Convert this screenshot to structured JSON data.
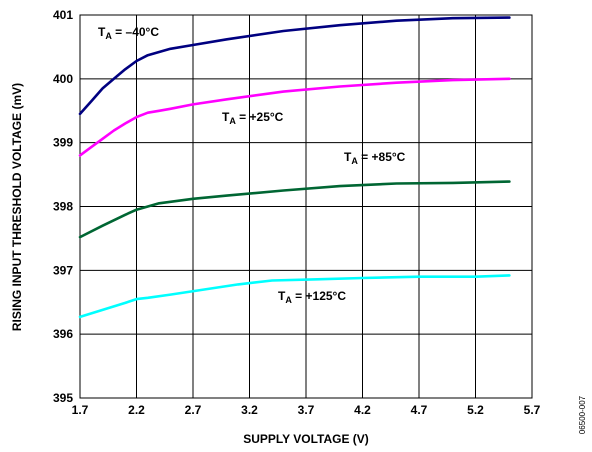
{
  "chart_data": {
    "type": "line",
    "xlabel": "SUPPLY VOLTAGE (V)",
    "ylabel": "RISING INPUT THRESHOLD VOLTAGE (mV)",
    "xlim": [
      1.7,
      5.7
    ],
    "ylim": [
      395,
      401
    ],
    "x_ticks": [
      "1.7",
      "2.2",
      "2.7",
      "3.2",
      "3.7",
      "4.2",
      "4.7",
      "5.2",
      "5.7"
    ],
    "y_ticks": [
      "395",
      "396",
      "397",
      "398",
      "399",
      "400",
      "401"
    ],
    "grid": true,
    "figure_id": "06500-007",
    "series": [
      {
        "name": "TA = –40°C",
        "label_main": "T",
        "label_sub": "A",
        "label_rest": " = –40°C",
        "color": "#000080",
        "x": [
          1.7,
          1.8,
          1.9,
          2.0,
          2.1,
          2.2,
          2.3,
          2.4,
          2.5,
          2.7,
          3.0,
          3.5,
          4.0,
          4.5,
          5.0,
          5.5
        ],
        "y": [
          399.45,
          399.65,
          399.85,
          400.0,
          400.15,
          400.28,
          400.37,
          400.42,
          400.47,
          400.53,
          400.62,
          400.75,
          400.84,
          400.91,
          400.95,
          400.96
        ]
      },
      {
        "name": "TA = +25°C",
        "label_main": "T",
        "label_sub": "A",
        "label_rest": " = +25°C",
        "color": "#ff00ff",
        "x": [
          1.7,
          1.8,
          1.9,
          2.0,
          2.1,
          2.2,
          2.3,
          2.4,
          2.5,
          2.7,
          3.0,
          3.5,
          4.0,
          4.5,
          5.0,
          5.5
        ],
        "y": [
          398.8,
          398.93,
          399.06,
          399.19,
          399.3,
          399.4,
          399.47,
          399.5,
          399.53,
          399.6,
          399.68,
          399.8,
          399.88,
          399.94,
          399.98,
          400.0
        ]
      },
      {
        "name": "TA = +85°C",
        "label_main": "T",
        "label_sub": "A",
        "label_rest": " = +85°C",
        "color": "#006633",
        "x": [
          1.7,
          1.9,
          2.1,
          2.2,
          2.3,
          2.4,
          2.7,
          3.0,
          3.5,
          4.0,
          4.5,
          5.0,
          5.5
        ],
        "y": [
          397.52,
          397.7,
          397.87,
          397.95,
          398.0,
          398.05,
          398.12,
          398.17,
          398.25,
          398.32,
          398.36,
          398.37,
          398.39
        ]
      },
      {
        "name": "TA = +125°C",
        "label_main": "T",
        "label_sub": "A",
        "label_rest": " = +125°C",
        "color": "#00ffff",
        "x": [
          1.7,
          1.9,
          2.1,
          2.2,
          2.3,
          2.5,
          2.8,
          3.1,
          3.4,
          3.8,
          4.2,
          4.7,
          5.2,
          5.5
        ],
        "y": [
          396.27,
          396.38,
          396.49,
          396.55,
          396.57,
          396.62,
          396.7,
          396.78,
          396.84,
          396.86,
          396.88,
          396.9,
          396.9,
          396.92
        ]
      }
    ]
  }
}
